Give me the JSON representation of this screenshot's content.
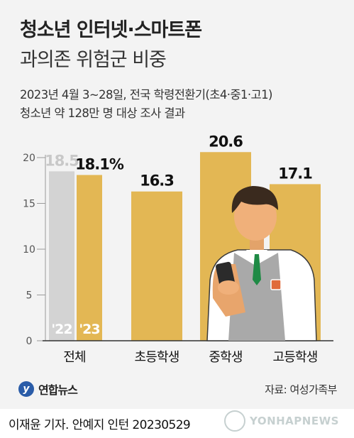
{
  "title_line1": "청소년 인터넷·스마트폰",
  "title_line2": "과의존 위험군 비중",
  "subtitle_line1": "2023년 4월 3~28일, 전국 학령전환기(초4·중1·고1)",
  "subtitle_line2": "청소년 약 128만 명 대상 조사 결과",
  "logo_text": "연합뉴스",
  "source": "자료: 여성가족부",
  "footer": "이재윤 기자. 안예지 인턴  20230529",
  "watermark": "YONHAPNEWS",
  "colors": {
    "gold": "#e3b754",
    "gray": "#d3d3d3",
    "background": "#f3f3f3"
  },
  "chart_data": {
    "type": "bar",
    "categories": [
      "전체",
      "초등학생",
      "중학생",
      "고등학생"
    ],
    "series": [
      {
        "name": "'22",
        "values": [
          18.5,
          null,
          null,
          null
        ]
      },
      {
        "name": "'23",
        "values": [
          18.1,
          16.3,
          20.6,
          17.1
        ]
      }
    ],
    "value_labels": [
      "18.5",
      "18.1%",
      "16.3",
      "20.6",
      "17.1"
    ],
    "y_ticks": [
      0,
      5,
      10,
      15,
      20
    ],
    "ylim": [
      0,
      22
    ],
    "grid": false
  }
}
